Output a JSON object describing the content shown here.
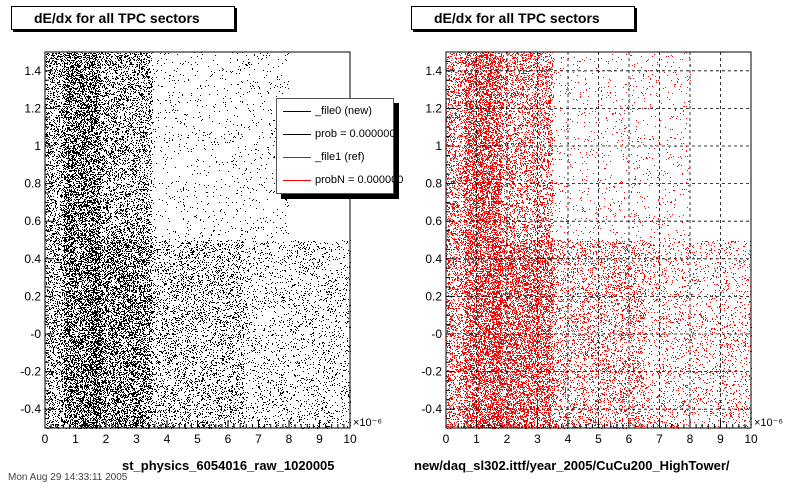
{
  "partial_footer_text": "Mon Aug 29 14:33:11 2005",
  "chart_data": [
    {
      "type": "scatter",
      "title": "dE/dx for all TPC sectors",
      "xlabel": "st_physics_6054016_raw_1020005",
      "x_exponent_label": "×10⁻⁶",
      "xlim": [
        0,
        10
      ],
      "ylim": [
        -0.5,
        1.5
      ],
      "x_ticks": [
        "0",
        "1",
        "2",
        "3",
        "4",
        "5",
        "6",
        "7",
        "8",
        "9",
        "10"
      ],
      "y_ticks": [
        "-0.4",
        "-0.2",
        "-0",
        "0.2",
        "0.4",
        "0.6",
        "0.8",
        "1",
        "1.2",
        "1.4"
      ],
      "grid": false,
      "marker_color": "#000000",
      "legend": {
        "placement": "top-right",
        "entries": [
          {
            "label": "_file0 (new)",
            "color": "#000000"
          },
          {
            "label": "prob = 0.000000",
            "color": "#000000"
          },
          {
            "label": "_file1 (ref)",
            "color": "#ff0000"
          },
          {
            "label": "probN = 0.000000",
            "color": "#ff0000"
          }
        ]
      },
      "density_regions": [
        {
          "x": [
            0.6,
            1.8
          ],
          "y": [
            -0.5,
            1.5
          ],
          "level": "very high"
        },
        {
          "x": [
            1.8,
            3.5
          ],
          "y": [
            -0.5,
            1.5
          ],
          "level": "high"
        },
        {
          "x": [
            1.5,
            6.5
          ],
          "y": [
            -0.5,
            0.5
          ],
          "level": "high"
        },
        {
          "x": [
            3.5,
            8.0
          ],
          "y": [
            0.5,
            1.5
          ],
          "level": "low"
        },
        {
          "x": [
            6.5,
            10.0
          ],
          "y": [
            -0.5,
            0.5
          ],
          "level": "medium"
        },
        {
          "x": [
            0.0,
            0.6
          ],
          "y": [
            -0.5,
            1.5
          ],
          "level": "medium"
        }
      ]
    },
    {
      "type": "scatter",
      "title": "dE/dx for all TPC sectors",
      "xlabel": "new/daq_sl302.ittf/year_2005/CuCu200_HighTower/",
      "x_exponent_label": "×10⁻⁶",
      "xlim": [
        0,
        10
      ],
      "ylim": [
        -0.5,
        1.5
      ],
      "x_ticks": [
        "0",
        "1",
        "2",
        "3",
        "4",
        "5",
        "6",
        "7",
        "8",
        "9",
        "10"
      ],
      "y_ticks": [
        "-0.4",
        "-0.2",
        "-0",
        "0.2",
        "0.4",
        "0.6",
        "0.8",
        "1",
        "1.2",
        "1.4"
      ],
      "grid": true,
      "marker_color": "#ff0000",
      "density_regions": [
        {
          "x": [
            0.6,
            1.8
          ],
          "y": [
            -0.5,
            1.5
          ],
          "level": "very high"
        },
        {
          "x": [
            1.8,
            3.5
          ],
          "y": [
            -0.5,
            1.5
          ],
          "level": "high"
        },
        {
          "x": [
            1.5,
            6.5
          ],
          "y": [
            -0.5,
            0.5
          ],
          "level": "high"
        },
        {
          "x": [
            3.5,
            8.0
          ],
          "y": [
            0.5,
            1.5
          ],
          "level": "low"
        },
        {
          "x": [
            6.5,
            10.0
          ],
          "y": [
            -0.5,
            0.5
          ],
          "level": "medium"
        },
        {
          "x": [
            0.0,
            0.6
          ],
          "y": [
            -0.5,
            1.5
          ],
          "level": "medium"
        }
      ]
    }
  ]
}
